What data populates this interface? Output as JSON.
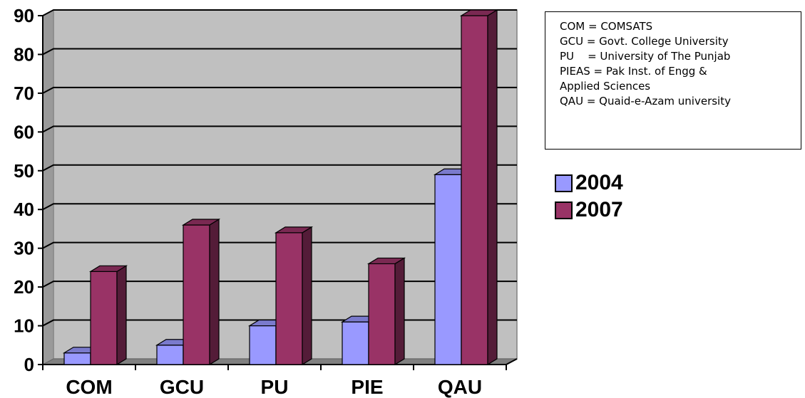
{
  "chart_data": {
    "type": "bar",
    "categories": [
      "COM",
      "GCU",
      "PU",
      "PIE",
      "QAU"
    ],
    "series": [
      {
        "name": "2004",
        "values": [
          3,
          5,
          10,
          11,
          49
        ],
        "color": "#9999ff"
      },
      {
        "name": "2007",
        "values": [
          24,
          36,
          34,
          26,
          90
        ],
        "color": "#993366"
      }
    ],
    "ylim": [
      0,
      90
    ],
    "yticks": [
      "0",
      "10",
      "20",
      "30",
      "40",
      "50",
      "60",
      "70",
      "80",
      "90"
    ],
    "grid": true,
    "background": "#c0c0c0",
    "style": "3d-clustered-column",
    "legend_position": "right"
  },
  "abbreviations": [
    "COM = COMSATS",
    "GCU = Govt. College University",
    "PU    = University of The Punjab",
    "PIEAS = Pak Inst. of Engg &",
    "Applied Sciences",
    "QAU = Quaid-e-Azam university"
  ]
}
